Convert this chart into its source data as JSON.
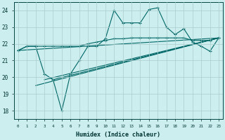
{
  "bg_color": "#cceeee",
  "grid_color": "#aacccc",
  "line_color": "#006666",
  "xlabel": "Humidex (Indice chaleur)",
  "xlim": [
    -0.5,
    23.5
  ],
  "ylim": [
    17.5,
    24.5
  ],
  "yticks": [
    18,
    19,
    20,
    21,
    22,
    23,
    24
  ],
  "figsize": [
    3.2,
    2.0
  ],
  "dpi": 100,
  "series_upper_x": [
    0,
    1,
    2,
    3,
    4,
    5,
    6,
    7,
    8,
    9,
    10,
    11,
    12,
    13,
    14,
    15,
    16,
    17,
    18,
    19,
    20,
    21,
    22,
    23
  ],
  "series_upper_y": [
    21.6,
    21.85,
    21.85,
    21.85,
    21.85,
    21.85,
    21.85,
    21.85,
    22.0,
    22.1,
    22.2,
    22.3,
    22.3,
    22.35,
    22.35,
    22.35,
    22.35,
    22.35,
    22.35,
    22.35,
    22.2,
    22.2,
    22.2,
    22.35
  ],
  "series_spiky_x": [
    0,
    1,
    2,
    3,
    4,
    5,
    6,
    7,
    8,
    9,
    10,
    11,
    12,
    13,
    14,
    15,
    16,
    17,
    18,
    19,
    20,
    21,
    22,
    23
  ],
  "series_spiky_y": [
    21.6,
    21.85,
    21.85,
    20.2,
    19.85,
    18.0,
    20.2,
    21.0,
    21.85,
    21.85,
    22.3,
    24.0,
    23.25,
    23.25,
    23.25,
    24.05,
    24.15,
    23.0,
    22.55,
    22.9,
    22.1,
    21.85,
    21.55,
    22.35
  ],
  "trend1_x": [
    0,
    23
  ],
  "trend1_y": [
    21.6,
    22.35
  ],
  "trend2_x": [
    2,
    23
  ],
  "trend2_y": [
    19.5,
    22.35
  ],
  "trend3_x": [
    3,
    23
  ],
  "trend3_y": [
    19.85,
    22.35
  ],
  "trend4_x": [
    4,
    23
  ],
  "trend4_y": [
    19.85,
    22.35
  ]
}
